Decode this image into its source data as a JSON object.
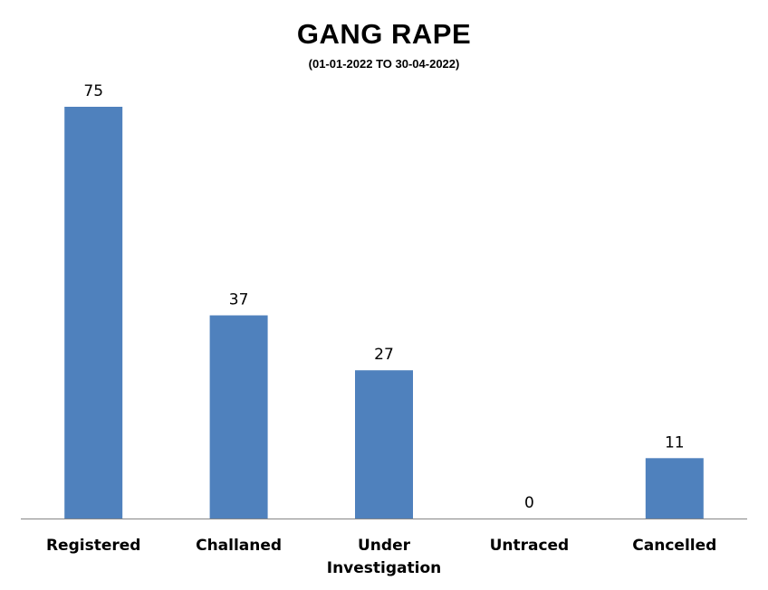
{
  "chart_data": {
    "type": "bar",
    "title": "GANG RAPE",
    "subtitle": "(01-01-2022 TO 30-04-2022)",
    "categories": [
      "Registered",
      "Challaned",
      "Under Investigation",
      "Untraced",
      "Cancelled"
    ],
    "category_lines": [
      [
        "Registered"
      ],
      [
        "Challaned"
      ],
      [
        "Under",
        "Investigation"
      ],
      [
        "Untraced"
      ],
      [
        "Cancelled"
      ]
    ],
    "values": [
      75,
      37,
      27,
      0,
      11
    ],
    "data_labels": [
      "75",
      "37",
      "27",
      "0",
      "11"
    ],
    "xlabel": "",
    "ylabel": "",
    "ylim": [
      0,
      75
    ],
    "grid": false,
    "legend": "none",
    "colors": {
      "bar": "#4f81bd",
      "axis": "#868686"
    }
  }
}
